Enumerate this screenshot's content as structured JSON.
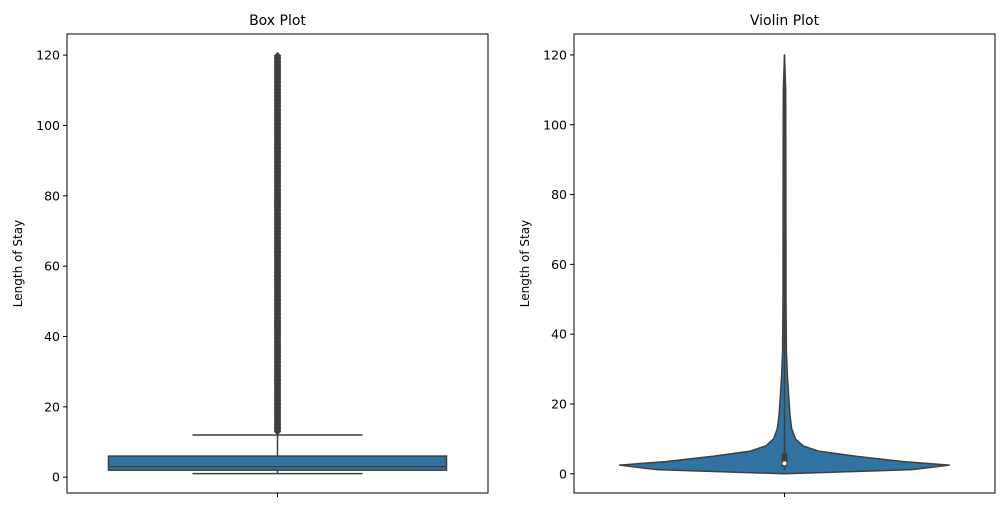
{
  "chart_data": [
    {
      "type": "box",
      "title": "Box Plot",
      "xlabel": "",
      "ylabel": "Length of Stay",
      "ylim": [
        -4.5,
        126
      ],
      "yticks": [
        0,
        20,
        40,
        60,
        80,
        100,
        120
      ],
      "whisker_low": 1,
      "q1": 2,
      "median": 3,
      "q3": 6,
      "whisker_high": 12,
      "outliers_range": [
        13,
        120
      ],
      "color": "#3274a1",
      "line_color": "#3f3f3f"
    },
    {
      "type": "violin",
      "title": "Violin Plot",
      "xlabel": "",
      "ylabel": "Length of Stay",
      "ylim": [
        -5.5,
        126
      ],
      "yticks": [
        0,
        20,
        40,
        60,
        80,
        100,
        120
      ],
      "min": 1,
      "q1": 2,
      "median": 3,
      "q3": 6,
      "max": 120,
      "density_profile": [
        {
          "y": 0,
          "w": 0.0
        },
        {
          "y": 1.2,
          "w": 0.75
        },
        {
          "y": 2.5,
          "w": 0.97
        },
        {
          "y": 3.5,
          "w": 0.7
        },
        {
          "y": 5,
          "w": 0.42
        },
        {
          "y": 6.5,
          "w": 0.2
        },
        {
          "y": 8,
          "w": 0.11
        },
        {
          "y": 10,
          "w": 0.065
        },
        {
          "y": 13,
          "w": 0.042
        },
        {
          "y": 17,
          "w": 0.032
        },
        {
          "y": 22,
          "w": 0.025
        },
        {
          "y": 28,
          "w": 0.017
        },
        {
          "y": 35,
          "w": 0.011
        },
        {
          "y": 50,
          "w": 0.009
        },
        {
          "y": 80,
          "w": 0.008
        },
        {
          "y": 110,
          "w": 0.007
        },
        {
          "y": 120,
          "w": 0.0
        }
      ],
      "color": "#3274a1",
      "line_color": "#3f3f3f"
    }
  ]
}
